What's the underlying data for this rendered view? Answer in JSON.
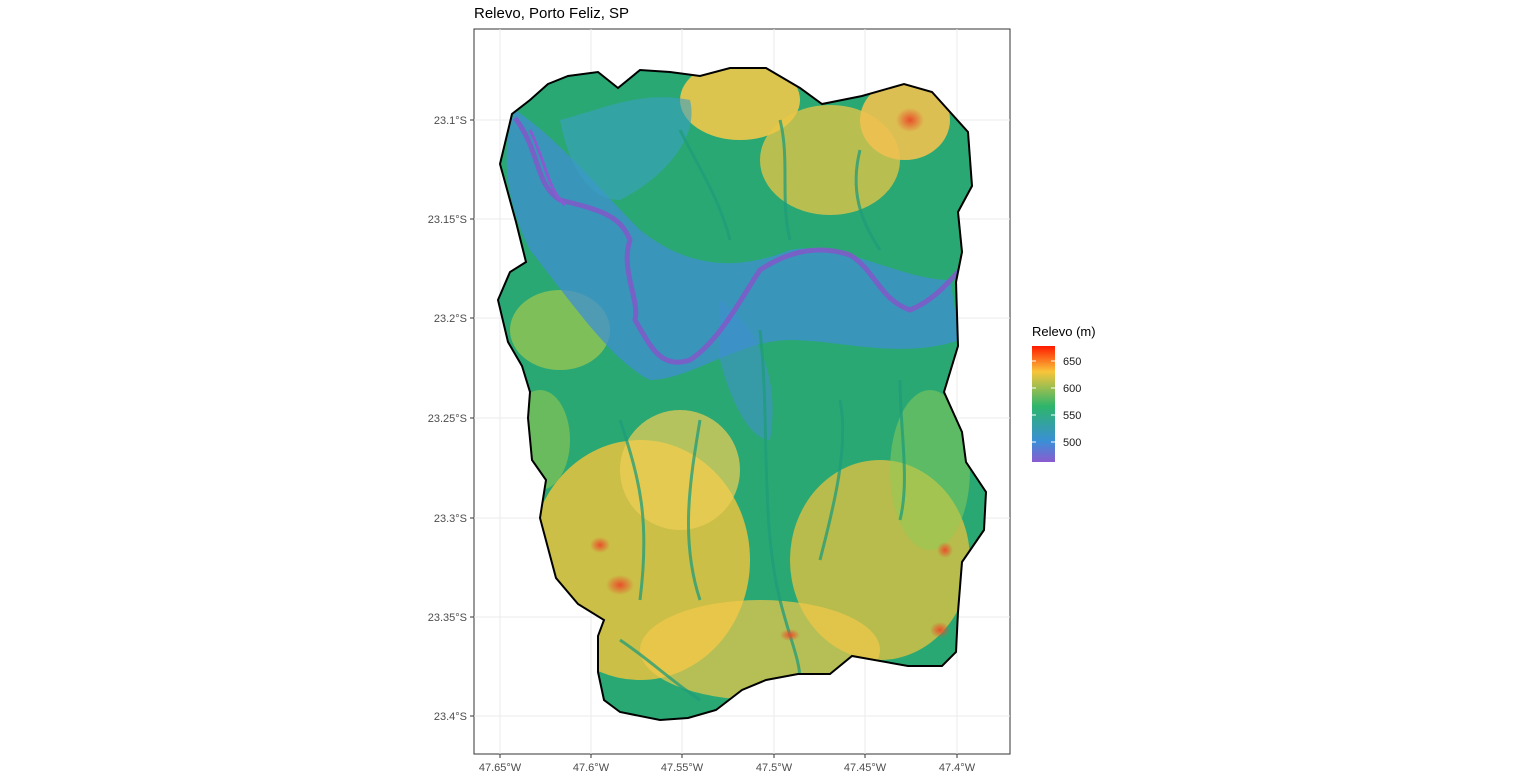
{
  "map": {
    "title": "Relevo, Porto Feliz, SP",
    "y_ticks": [
      "23.1°S",
      "23.15°S",
      "23.2°S",
      "23.25°S",
      "23.3°S",
      "23.35°S",
      "23.4°S"
    ],
    "x_ticks": [
      "47.65°W",
      "47.6°W",
      "47.55°W",
      "47.5°W",
      "47.45°W",
      "47.4°W"
    ],
    "grid": true,
    "boundary_color": "#000000"
  },
  "legend": {
    "title": "Relevo (m)",
    "labels": [
      "650",
      "600",
      "550",
      "500"
    ],
    "placement": "right",
    "colors": [
      "#ff1a00",
      "#f9c53a",
      "#2db56b",
      "#3a8fd6",
      "#8a5bd0"
    ]
  }
}
